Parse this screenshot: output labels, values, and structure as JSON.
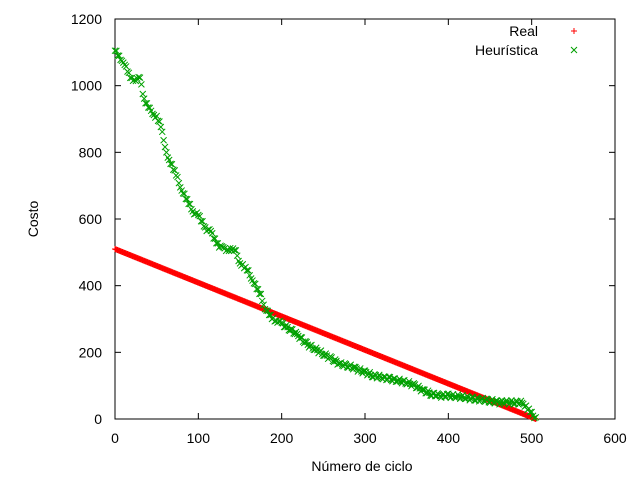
{
  "chart_data": {
    "type": "scatter",
    "xlabel": "Número de ciclo",
    "ylabel": "Costo",
    "xlim": [
      0,
      600
    ],
    "ylim": [
      0,
      1200
    ],
    "xticks": [
      0,
      100,
      200,
      300,
      400,
      500,
      600
    ],
    "yticks": [
      0,
      200,
      400,
      600,
      800,
      1000,
      1200
    ],
    "xtick_labels": [
      "0",
      "100",
      "200",
      "300",
      "400",
      "500",
      "600"
    ],
    "ytick_labels": [
      "0",
      "200",
      "400",
      "600",
      "800",
      "1000",
      "1200"
    ],
    "grid": false,
    "legend_position": "top-right",
    "series": [
      {
        "name": "Real",
        "marker": "plus",
        "color": "#ff0000",
        "x_range": [
          0,
          505
        ],
        "y_range": [
          510,
          0
        ],
        "note_points": "dense straight line of points every cycle"
      },
      {
        "name": "Heurística",
        "marker": "cross",
        "color": "#00a000",
        "x": [
          0,
          5,
          10,
          15,
          20,
          25,
          30,
          35,
          40,
          45,
          50,
          55,
          60,
          65,
          70,
          75,
          80,
          85,
          90,
          95,
          100,
          105,
          110,
          115,
          120,
          125,
          130,
          135,
          140,
          145,
          150,
          155,
          160,
          165,
          170,
          175,
          180,
          185,
          190,
          195,
          200,
          210,
          220,
          230,
          240,
          250,
          260,
          270,
          280,
          290,
          300,
          310,
          320,
          330,
          340,
          350,
          360,
          370,
          380,
          390,
          400,
          410,
          420,
          430,
          440,
          450,
          460,
          470,
          480,
          490,
          495,
          500,
          505
        ],
        "y": [
          1105,
          1085,
          1075,
          1040,
          1020,
          1020,
          1020,
          960,
          940,
          910,
          910,
          880,
          810,
          780,
          750,
          720,
          690,
          660,
          640,
          620,
          610,
          590,
          570,
          560,
          540,
          520,
          510,
          510,
          510,
          500,
          470,
          455,
          440,
          420,
          390,
          370,
          335,
          310,
          300,
          295,
          285,
          270,
          250,
          225,
          210,
          195,
          180,
          165,
          160,
          150,
          140,
          130,
          125,
          120,
          115,
          110,
          100,
          85,
          75,
          70,
          70,
          68,
          65,
          60,
          58,
          55,
          50,
          50,
          50,
          48,
          30,
          15,
          5
        ]
      }
    ]
  }
}
